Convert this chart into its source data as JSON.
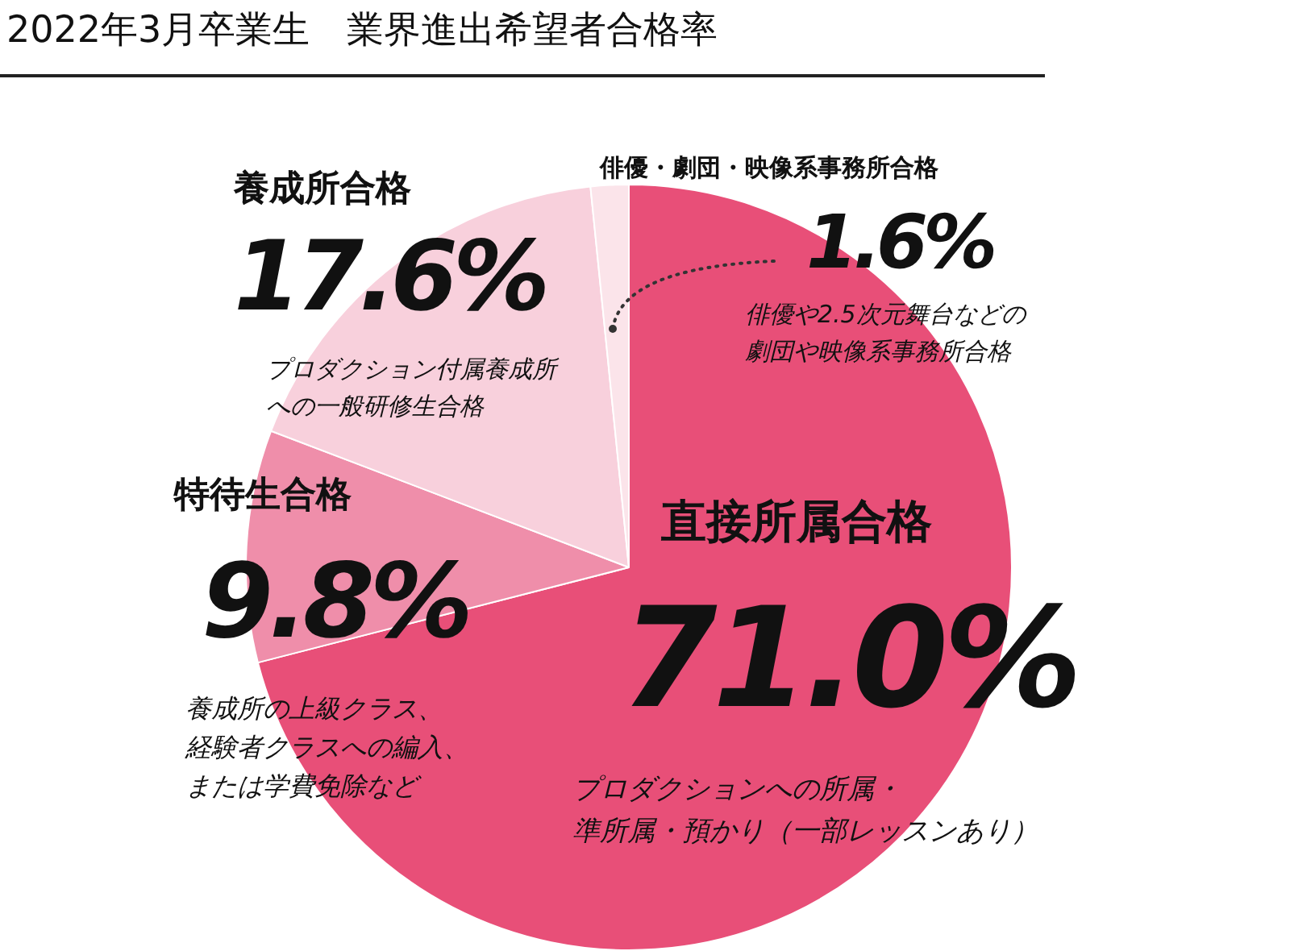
{
  "chart_data": {
    "type": "pie",
    "title": "2022年3月卒業生　業界進出希望者合格率",
    "categories": [
      "直接所属合格",
      "特待生合格",
      "養成所合格",
      "俳優・劇団・映像系事務所合格"
    ],
    "values": [
      71.0,
      9.8,
      17.6,
      1.6
    ],
    "colors": [
      "#e84f78",
      "#ef8eaa",
      "#f8d0dc",
      "#fbe4ea"
    ],
    "value_labels": [
      "71.0%",
      "9.8%",
      "17.6%",
      "1.6%"
    ],
    "annotations": [
      "プロダクションへの所属・準所属・預かり（一部レッスンあり）",
      "養成所の上級クラス、経験者クラスへの編入、または学費免除など",
      "プロダクション付属養成所への一般研修生合格",
      "俳優や2.5次元舞台などの劇団や映像系事務所合格"
    ],
    "legend": false
  }
}
